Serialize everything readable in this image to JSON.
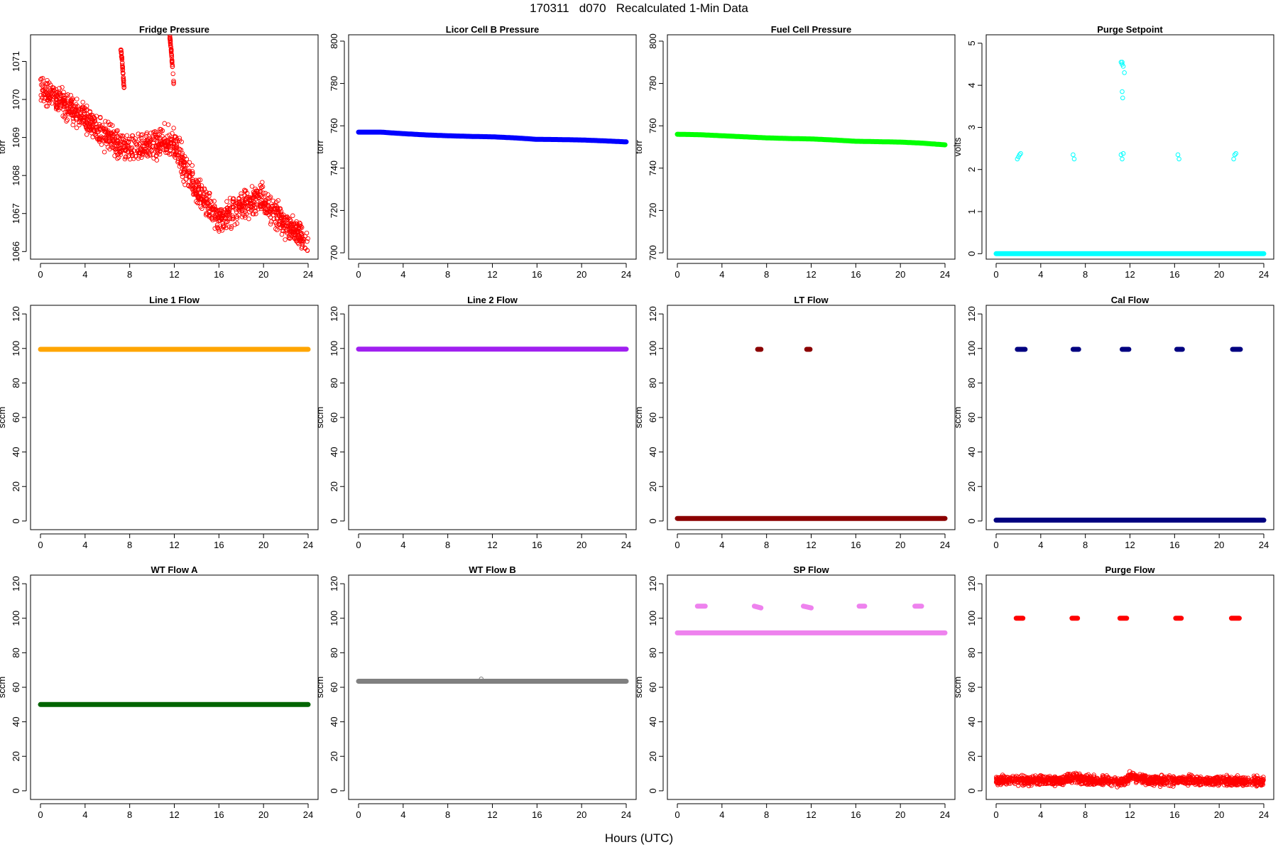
{
  "page": {
    "title": "170311   d070   Recalculated 1-Min Data",
    "x_axis_title": "Hours (UTC)"
  },
  "chart_data": [
    {
      "type": "scatter",
      "title": "Fridge Pressure",
      "ylabel": "torr",
      "xlim": [
        0,
        24
      ],
      "ylim": [
        1065.8,
        1071.7
      ],
      "xticks": [
        0,
        4,
        8,
        12,
        16,
        20,
        24
      ],
      "yticks": [
        1066,
        1067,
        1068,
        1069,
        1070,
        1071
      ],
      "color": "#ff0000",
      "marker": "open-circle",
      "series": [
        {
          "name": "",
          "kind": "scatter",
          "x": [
            0.0,
            0.5,
            1.0,
            1.5,
            2.0,
            2.5,
            3.0,
            3.5,
            4.0,
            4.5,
            5.0,
            5.5,
            6.0,
            6.5,
            7.0,
            7.5,
            8.0,
            8.5,
            9.0,
            9.5,
            10.0,
            10.5,
            11.0,
            11.5,
            12.0,
            12.5,
            13.0,
            13.5,
            14.0,
            14.5,
            15.0,
            15.5,
            16.0,
            16.5,
            17.0,
            17.5,
            18.0,
            18.5,
            19.0,
            19.5,
            20.0,
            20.5,
            21.0,
            21.5,
            22.0,
            22.5,
            23.0,
            23.5,
            24.0
          ],
          "y": [
            1070.3,
            1070.2,
            1070.1,
            1070.0,
            1069.9,
            1069.8,
            1069.7,
            1069.6,
            1069.5,
            1069.4,
            1069.2,
            1069.1,
            1069.0,
            1068.9,
            1068.8,
            1068.8,
            1068.7,
            1068.7,
            1068.7,
            1068.8,
            1068.8,
            1068.8,
            1068.9,
            1068.9,
            1068.8,
            1068.5,
            1068.2,
            1067.9,
            1067.6,
            1067.4,
            1067.2,
            1067.0,
            1066.9,
            1066.9,
            1067.0,
            1067.1,
            1067.2,
            1067.3,
            1067.3,
            1067.4,
            1067.4,
            1067.2,
            1067.0,
            1066.9,
            1066.7,
            1066.6,
            1066.5,
            1066.3,
            1066.2
          ],
          "spread": 0.55
        },
        {
          "name": "",
          "kind": "scatter",
          "x": [
            7.2,
            7.25,
            7.3,
            7.35,
            7.4,
            7.45,
            7.5
          ],
          "y": [
            1071.35,
            1071.2,
            1071.05,
            1070.9,
            1070.7,
            1070.5,
            1070.3
          ],
          "spread": 0.1
        },
        {
          "name": "",
          "kind": "scatter",
          "x": [
            11.6,
            11.65,
            11.7,
            11.75,
            11.8,
            11.85,
            11.9,
            11.95
          ],
          "y": [
            1071.65,
            1071.5,
            1071.35,
            1071.2,
            1071.0,
            1070.8,
            1070.6,
            1070.4
          ],
          "spread": 0.1
        }
      ]
    },
    {
      "type": "scatter",
      "title": "Licor Cell B Pressure",
      "ylabel": "torr",
      "xlim": [
        0,
        24
      ],
      "ylim": [
        697,
        803
      ],
      "xticks": [
        0,
        4,
        8,
        12,
        16,
        20,
        24
      ],
      "yticks": [
        700,
        720,
        740,
        760,
        780,
        800
      ],
      "color": "#0000ff",
      "marker": "open-circle",
      "series": [
        {
          "name": "",
          "kind": "band",
          "x": [
            0,
            2,
            4,
            6,
            8,
            10,
            12,
            14,
            16,
            18,
            20,
            22,
            24
          ],
          "y": [
            757.0,
            757.0,
            756.3,
            755.7,
            755.3,
            755.0,
            754.8,
            754.3,
            753.6,
            753.5,
            753.3,
            752.9,
            752.4
          ]
        }
      ]
    },
    {
      "type": "scatter",
      "title": "Fuel Cell Pressure",
      "ylabel": "torr",
      "xlim": [
        0,
        24
      ],
      "ylim": [
        697,
        803
      ],
      "xticks": [
        0,
        4,
        8,
        12,
        16,
        20,
        24
      ],
      "yticks": [
        700,
        720,
        740,
        760,
        780,
        800
      ],
      "color": "#00ff00",
      "marker": "open-circle",
      "series": [
        {
          "name": "",
          "kind": "band",
          "x": [
            0,
            2,
            4,
            6,
            8,
            10,
            12,
            14,
            16,
            18,
            20,
            22,
            24
          ],
          "y": [
            756.0,
            755.8,
            755.3,
            754.8,
            754.3,
            754.0,
            753.8,
            753.3,
            752.7,
            752.5,
            752.3,
            751.8,
            751.0
          ]
        }
      ]
    },
    {
      "type": "scatter",
      "title": "Purge Setpoint",
      "ylabel": "volts",
      "xlim": [
        0,
        24
      ],
      "ylim": [
        -0.13,
        5.2
      ],
      "xticks": [
        0,
        4,
        8,
        12,
        16,
        20,
        24
      ],
      "yticks": [
        0,
        1,
        2,
        3,
        4,
        5
      ],
      "color": "#00ffff",
      "marker": "open-circle",
      "series": [
        {
          "name": "",
          "kind": "band",
          "x": [
            0,
            24
          ],
          "y": [
            0,
            0
          ]
        },
        {
          "name": "",
          "kind": "points",
          "x": [
            1.9,
            2.0,
            2.1,
            2.2,
            6.9,
            7.0,
            11.2,
            11.3,
            11.4,
            16.3,
            16.4,
            21.3,
            21.4,
            21.5,
            11.2,
            11.3,
            11.4,
            11.5,
            11.3,
            11.35,
            11.3
          ],
          "y": [
            2.25,
            2.3,
            2.35,
            2.38,
            2.35,
            2.25,
            2.35,
            2.25,
            2.38,
            2.35,
            2.25,
            2.25,
            2.35,
            2.38,
            4.55,
            4.5,
            4.45,
            4.3,
            3.85,
            3.7,
            4.55
          ]
        }
      ]
    },
    {
      "type": "scatter",
      "title": "Line 1 Flow",
      "ylabel": "sccm",
      "xlim": [
        0,
        24
      ],
      "ylim": [
        -5,
        125
      ],
      "xticks": [
        0,
        4,
        8,
        12,
        16,
        20,
        24
      ],
      "yticks": [
        0,
        20,
        40,
        60,
        80,
        100,
        120
      ],
      "color": "#ffa500",
      "marker": "open-circle",
      "series": [
        {
          "name": "",
          "kind": "band",
          "x": [
            0,
            24
          ],
          "y": [
            99.5,
            99.5
          ]
        }
      ]
    },
    {
      "type": "scatter",
      "title": "Line 2 Flow",
      "ylabel": "sccm",
      "xlim": [
        0,
        24
      ],
      "ylim": [
        -5,
        125
      ],
      "xticks": [
        0,
        4,
        8,
        12,
        16,
        20,
        24
      ],
      "yticks": [
        0,
        20,
        40,
        60,
        80,
        100,
        120
      ],
      "color": "#a020f0",
      "marker": "open-circle",
      "series": [
        {
          "name": "",
          "kind": "band",
          "x": [
            0,
            24
          ],
          "y": [
            99.6,
            99.6
          ]
        }
      ]
    },
    {
      "type": "scatter",
      "title": "LT Flow",
      "ylabel": "sccm",
      "xlim": [
        0,
        24
      ],
      "ylim": [
        -5,
        125
      ],
      "xticks": [
        0,
        4,
        8,
        12,
        16,
        20,
        24
      ],
      "yticks": [
        0,
        20,
        40,
        60,
        80,
        100,
        120
      ],
      "color": "#8b0000",
      "marker": "open-circle",
      "series": [
        {
          "name": "",
          "kind": "band",
          "x": [
            0,
            24
          ],
          "y": [
            1.5,
            1.5
          ]
        },
        {
          "name": "",
          "kind": "cluster",
          "x": [
            7.2,
            7.5
          ],
          "y": [
            99.5,
            99.5
          ]
        },
        {
          "name": "",
          "kind": "cluster",
          "x": [
            11.6,
            11.9
          ],
          "y": [
            99.5,
            99.5
          ]
        }
      ]
    },
    {
      "type": "scatter",
      "title": "Cal Flow",
      "ylabel": "sccm",
      "xlim": [
        0,
        24
      ],
      "ylim": [
        -5,
        125
      ],
      "xticks": [
        0,
        4,
        8,
        12,
        16,
        20,
        24
      ],
      "yticks": [
        0,
        20,
        40,
        60,
        80,
        100,
        120
      ],
      "color": "#000080",
      "marker": "open-circle",
      "series": [
        {
          "name": "",
          "kind": "band",
          "x": [
            0,
            24
          ],
          "y": [
            0.5,
            0.5
          ]
        },
        {
          "name": "",
          "kind": "cluster",
          "x": [
            1.9,
            2.6
          ],
          "y": [
            99.5,
            99.5
          ]
        },
        {
          "name": "",
          "kind": "cluster",
          "x": [
            6.9,
            7.4
          ],
          "y": [
            99.5,
            99.5
          ]
        },
        {
          "name": "",
          "kind": "cluster",
          "x": [
            11.3,
            11.9
          ],
          "y": [
            99.5,
            99.5
          ]
        },
        {
          "name": "",
          "kind": "cluster",
          "x": [
            16.2,
            16.7
          ],
          "y": [
            99.5,
            99.5
          ]
        },
        {
          "name": "",
          "kind": "cluster",
          "x": [
            21.2,
            21.9
          ],
          "y": [
            99.5,
            99.5
          ]
        }
      ]
    },
    {
      "type": "scatter",
      "title": "WT Flow A",
      "ylabel": "sccm",
      "xlim": [
        0,
        24
      ],
      "ylim": [
        -5,
        125
      ],
      "xticks": [
        0,
        4,
        8,
        12,
        16,
        20,
        24
      ],
      "yticks": [
        0,
        20,
        40,
        60,
        80,
        100,
        120
      ],
      "color": "#006400",
      "marker": "open-circle",
      "series": [
        {
          "name": "",
          "kind": "band",
          "x": [
            0,
            24
          ],
          "y": [
            50,
            50
          ]
        }
      ]
    },
    {
      "type": "scatter",
      "title": "WT Flow B",
      "ylabel": "sccm",
      "xlim": [
        0,
        24
      ],
      "ylim": [
        -5,
        125
      ],
      "xticks": [
        0,
        4,
        8,
        12,
        16,
        20,
        24
      ],
      "yticks": [
        0,
        20,
        40,
        60,
        80,
        100,
        120
      ],
      "color": "#808080",
      "marker": "open-circle",
      "series": [
        {
          "name": "",
          "kind": "band",
          "x": [
            0,
            24
          ],
          "y": [
            63.5,
            63.5
          ]
        },
        {
          "name": "",
          "kind": "points",
          "x": [
            11.0
          ],
          "y": [
            64.8
          ]
        }
      ]
    },
    {
      "type": "scatter",
      "title": "SP Flow",
      "ylabel": "sccm",
      "xlim": [
        0,
        24
      ],
      "ylim": [
        -5,
        125
      ],
      "xticks": [
        0,
        4,
        8,
        12,
        16,
        20,
        24
      ],
      "yticks": [
        0,
        20,
        40,
        60,
        80,
        100,
        120
      ],
      "color": "#ee82ee",
      "marker": "open-circle",
      "series": [
        {
          "name": "",
          "kind": "band",
          "x": [
            0,
            24
          ],
          "y": [
            91.5,
            91.5
          ]
        },
        {
          "name": "",
          "kind": "cluster",
          "x": [
            1.8,
            2.5
          ],
          "y": [
            107,
            107
          ]
        },
        {
          "name": "",
          "kind": "cluster",
          "x": [
            6.9,
            7.5
          ],
          "y": [
            107,
            106
          ]
        },
        {
          "name": "",
          "kind": "cluster",
          "x": [
            11.3,
            12.0
          ],
          "y": [
            107,
            106
          ]
        },
        {
          "name": "",
          "kind": "cluster",
          "x": [
            16.3,
            16.8
          ],
          "y": [
            107,
            107
          ]
        },
        {
          "name": "",
          "kind": "cluster",
          "x": [
            21.3,
            21.9
          ],
          "y": [
            107,
            107
          ]
        }
      ]
    },
    {
      "type": "scatter",
      "title": "Purge Flow",
      "ylabel": "sccm",
      "xlim": [
        0,
        24
      ],
      "ylim": [
        -5,
        125
      ],
      "xticks": [
        0,
        4,
        8,
        12,
        16,
        20,
        24
      ],
      "yticks": [
        0,
        20,
        40,
        60,
        80,
        100,
        120
      ],
      "color": "#ff0000",
      "marker": "open-circle",
      "series": [
        {
          "name": "",
          "kind": "scatter",
          "x": [
            0,
            2,
            4,
            6,
            7,
            7.5,
            8,
            10,
            11.5,
            12,
            14,
            16,
            18,
            20,
            22,
            24
          ],
          "y": [
            6,
            6,
            6,
            6,
            8,
            7,
            6,
            6,
            5,
            8,
            6,
            6,
            6,
            6,
            5.5,
            5.5
          ],
          "spread": 4
        },
        {
          "name": "",
          "kind": "cluster",
          "x": [
            1.8,
            2.4
          ],
          "y": [
            100,
            100
          ]
        },
        {
          "name": "",
          "kind": "cluster",
          "x": [
            6.8,
            7.3
          ],
          "y": [
            100,
            100
          ]
        },
        {
          "name": "",
          "kind": "cluster",
          "x": [
            11.1,
            11.7
          ],
          "y": [
            100,
            100
          ]
        },
        {
          "name": "",
          "kind": "cluster",
          "x": [
            16.1,
            16.6
          ],
          "y": [
            100,
            100
          ]
        },
        {
          "name": "",
          "kind": "cluster",
          "x": [
            21.1,
            21.8
          ],
          "y": [
            100,
            100
          ]
        }
      ]
    }
  ]
}
